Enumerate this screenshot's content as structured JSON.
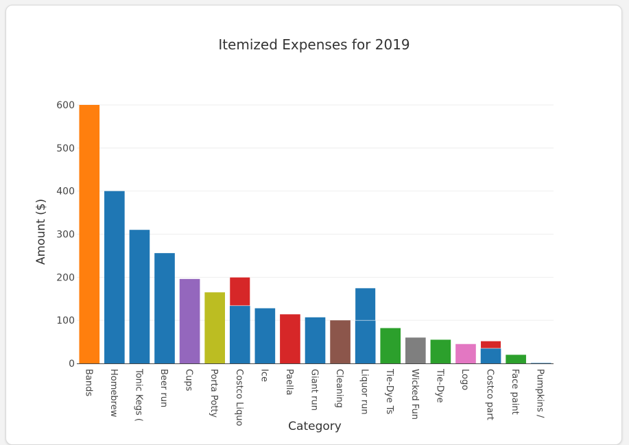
{
  "chart_data": {
    "type": "bar",
    "barmode": "stack",
    "title": "Itemized Expenses for 2019",
    "xlabel": "Category",
    "ylabel": "Amount ($)",
    "ylim": [
      0,
      600
    ],
    "yticks": [
      0,
      100,
      200,
      300,
      400,
      500,
      600
    ],
    "categories": [
      "Bands",
      "Homebrew",
      "Tonic Kegs (",
      "Beer run",
      "Cups",
      "Porta Potty",
      "Costco Liquo",
      "Ice",
      "Paella",
      "Giant run",
      "Cleaning",
      "Liquor run",
      "Tie-Dye Ts",
      "Wicked Fun",
      "Tie-Dye",
      "Logo",
      "Costco part",
      "Face paint",
      "Pumpkins /"
    ],
    "bars": [
      {
        "category": "Bands",
        "segments": [
          {
            "value": 600,
            "color": "#ff7f0e"
          }
        ]
      },
      {
        "category": "Homebrew",
        "segments": [
          {
            "value": 400,
            "color": "#1f77b4"
          }
        ]
      },
      {
        "category": "Tonic Kegs (",
        "segments": [
          {
            "value": 310,
            "color": "#1f77b4"
          }
        ]
      },
      {
        "category": "Beer run",
        "segments": [
          {
            "value": 256,
            "color": "#1f77b4"
          }
        ]
      },
      {
        "category": "Cups",
        "segments": [
          {
            "value": 196,
            "color": "#9467bd"
          }
        ]
      },
      {
        "category": "Porta Potty",
        "segments": [
          {
            "value": 165,
            "color": "#bcbd22"
          }
        ]
      },
      {
        "category": "Costco Liquo",
        "segments": [
          {
            "value": 134,
            "color": "#1f77b4"
          },
          {
            "value": 66,
            "color": "#d62728"
          }
        ]
      },
      {
        "category": "Ice",
        "segments": [
          {
            "value": 128,
            "color": "#1f77b4"
          }
        ]
      },
      {
        "category": "Paella",
        "segments": [
          {
            "value": 114,
            "color": "#d62728"
          }
        ]
      },
      {
        "category": "Giant run",
        "segments": [
          {
            "value": 107,
            "color": "#1f77b4"
          }
        ]
      },
      {
        "category": "Cleaning",
        "segments": [
          {
            "value": 100,
            "color": "#8c564b"
          }
        ]
      },
      {
        "category": "Liquor run",
        "segments": [
          {
            "value": 100,
            "color": "#1f77b4"
          },
          {
            "value": 75,
            "color": "#1f77b4"
          }
        ]
      },
      {
        "category": "Tie-Dye Ts",
        "segments": [
          {
            "value": 82,
            "color": "#2ca02c"
          }
        ]
      },
      {
        "category": "Wicked Fun",
        "segments": [
          {
            "value": 60,
            "color": "#7f7f7f"
          }
        ]
      },
      {
        "category": "Tie-Dye",
        "segments": [
          {
            "value": 55,
            "color": "#2ca02c"
          }
        ]
      },
      {
        "category": "Logo",
        "segments": [
          {
            "value": 45,
            "color": "#e377c2"
          }
        ]
      },
      {
        "category": "Costco part",
        "segments": [
          {
            "value": 35,
            "color": "#1f77b4"
          },
          {
            "value": 17,
            "color": "#d62728"
          }
        ]
      },
      {
        "category": "Face paint",
        "segments": [
          {
            "value": 20,
            "color": "#2ca02c"
          }
        ]
      },
      {
        "category": "Pumpkins /",
        "segments": [
          {
            "value": 1,
            "color": "#1f77b4"
          }
        ]
      }
    ],
    "gridlines": true,
    "legend": "none"
  }
}
